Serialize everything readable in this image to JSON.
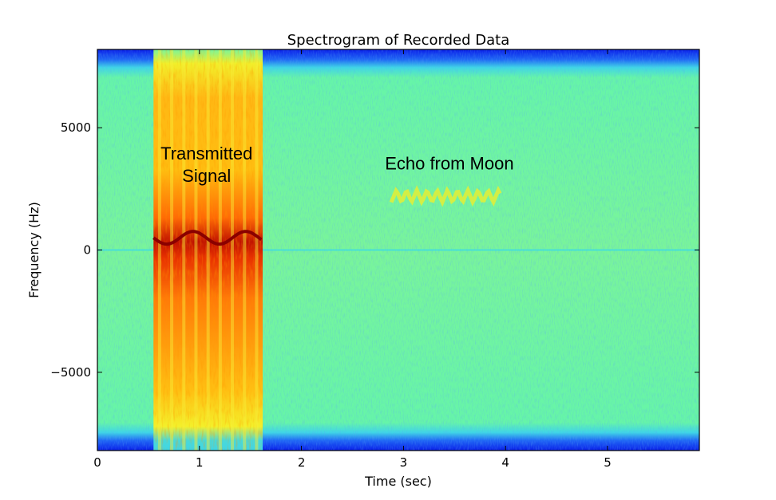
{
  "chart_data": {
    "type": "heatmap",
    "title": "Spectrogram of Recorded Data",
    "xlabel": "Time (sec)",
    "ylabel": "Frequency (Hz)",
    "xlim": [
      0,
      5.9
    ],
    "ylim": [
      -8200,
      8200
    ],
    "x_ticks": [
      0,
      1,
      2,
      3,
      4,
      5
    ],
    "x_tick_labels": [
      "0",
      "1",
      "2",
      "3",
      "4",
      "5"
    ],
    "y_ticks": [
      5000,
      0,
      -5000
    ],
    "y_tick_labels": [
      "5000",
      "0",
      "−5000"
    ],
    "colormap": "jet",
    "grid": false,
    "annotations": [
      {
        "text_lines": [
          "Transmitted",
          "Signal"
        ],
        "x": 1.07,
        "y": 3700
      },
      {
        "text_lines": [
          "Echo from Moon"
        ],
        "x": 3.45,
        "y": 3300
      }
    ],
    "regions": [
      {
        "name": "transmitted-signal",
        "t_start": 0.55,
        "t_end": 1.62,
        "f_min": -8200,
        "f_max": 8200,
        "intensity": "high",
        "peak_band_hz": 500
      },
      {
        "name": "echo",
        "t_start": 2.88,
        "t_end": 3.95,
        "f_center": 2200,
        "f_deviation": 250,
        "oscillation_period_sec": 0.1,
        "intensity": "medium"
      }
    ],
    "background": {
      "edge_band_hz": 1000,
      "edge_color": "low",
      "baseline_color": "medium",
      "dc_line_hz": 0
    }
  }
}
